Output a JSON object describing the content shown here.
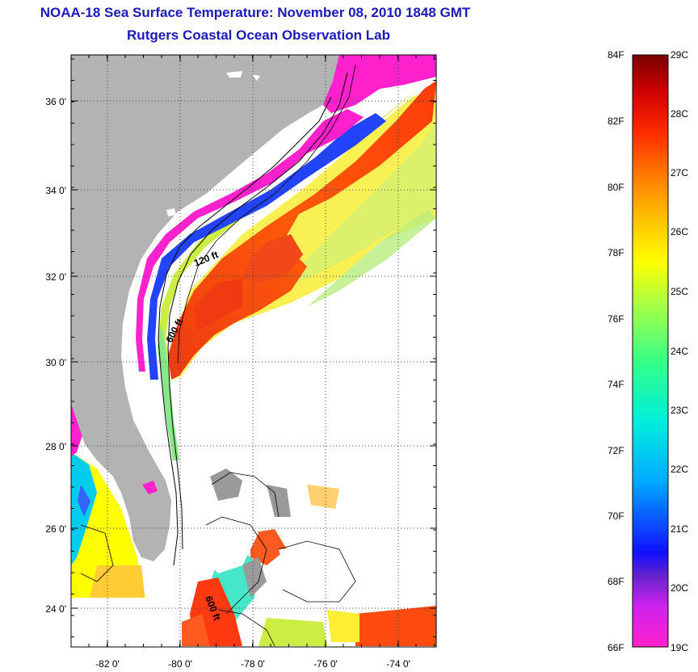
{
  "header": {
    "title": "NOAA-18 Sea Surface Temperature:  November 08, 2010 1848 GMT",
    "subtitle": "Rutgers Coastal Ocean Observation Lab"
  },
  "map": {
    "lat_labels": [
      "36 0'",
      "34 0'",
      "32 0'",
      "30 0'",
      "28 0'",
      "26 0'",
      "24 0'"
    ],
    "lon_labels": [
      "-82 0'",
      "-80 0'",
      "-78 0'",
      "-76 0'",
      "-74 0'"
    ],
    "contour_labels": [
      "120 ft",
      "600 ft",
      "600 ft"
    ],
    "colors": {
      "land": "#b3b3b3",
      "no_data": "#ffffff",
      "coldest": "#ff22cc",
      "warmest": "#7a0000"
    }
  },
  "colorbar": {
    "fahrenheit": [
      "84F",
      "82F",
      "80F",
      "78F",
      "76F",
      "74F",
      "72F",
      "70F",
      "68F",
      "66F"
    ],
    "celsius": [
      "29C",
      "28C",
      "27C",
      "26C",
      "25C",
      "24C",
      "23C",
      "22C",
      "21C",
      "20C",
      "19C"
    ]
  }
}
